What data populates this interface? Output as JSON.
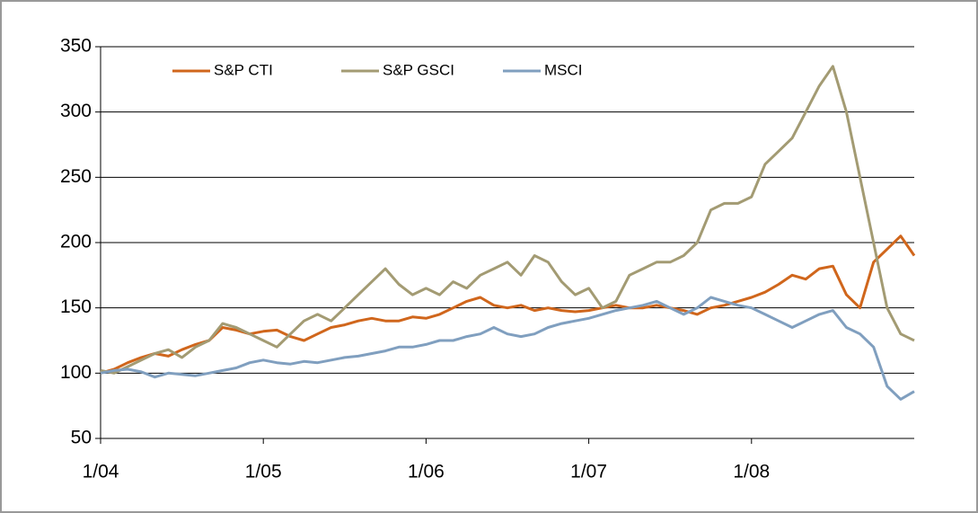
{
  "chart_data": {
    "type": "line",
    "categories": [
      "1/04",
      null,
      null,
      null,
      null,
      null,
      null,
      null,
      null,
      null,
      null,
      null,
      "1/05",
      null,
      null,
      null,
      null,
      null,
      null,
      null,
      null,
      null,
      null,
      null,
      "1/06",
      null,
      null,
      null,
      null,
      null,
      null,
      null,
      null,
      null,
      null,
      null,
      "1/07",
      null,
      null,
      null,
      null,
      null,
      null,
      null,
      null,
      null,
      null,
      null,
      "1/08",
      null,
      null,
      null,
      null,
      null,
      null,
      null,
      null,
      null,
      null,
      null,
      null
    ],
    "series": [
      {
        "name": "S&P CTI",
        "color": "#d0661c",
        "values": [
          100,
          103,
          108,
          112,
          115,
          113,
          118,
          122,
          125,
          135,
          133,
          130,
          132,
          133,
          128,
          125,
          130,
          135,
          137,
          140,
          142,
          140,
          140,
          143,
          142,
          145,
          150,
          155,
          158,
          152,
          150,
          152,
          148,
          150,
          148,
          147,
          148,
          150,
          152,
          150,
          150,
          152,
          150,
          148,
          145,
          150,
          152,
          155,
          158,
          162,
          168,
          175,
          172,
          180,
          182,
          160,
          150,
          185,
          195,
          205,
          190
        ]
      },
      {
        "name": "S&P GSCI",
        "color": "#a39b73",
        "values": [
          102,
          100,
          105,
          110,
          115,
          118,
          112,
          120,
          125,
          138,
          135,
          130,
          125,
          120,
          130,
          140,
          145,
          140,
          150,
          160,
          170,
          180,
          168,
          160,
          165,
          160,
          170,
          165,
          175,
          180,
          185,
          175,
          190,
          185,
          170,
          160,
          165,
          150,
          155,
          175,
          180,
          185,
          185,
          190,
          200,
          225,
          230,
          230,
          235,
          260,
          270,
          280,
          300,
          320,
          335,
          300,
          250,
          200,
          150,
          130,
          125
        ]
      },
      {
        "name": "MSCI",
        "color": "#809fbf",
        "values": [
          100,
          102,
          103,
          101,
          97,
          100,
          99,
          98,
          100,
          102,
          104,
          108,
          110,
          108,
          107,
          109,
          108,
          110,
          112,
          113,
          115,
          117,
          120,
          120,
          122,
          125,
          125,
          128,
          130,
          135,
          130,
          128,
          130,
          135,
          138,
          140,
          142,
          145,
          148,
          150,
          152,
          155,
          150,
          145,
          150,
          158,
          155,
          152,
          150,
          145,
          140,
          135,
          140,
          145,
          148,
          135,
          130,
          120,
          90,
          80,
          86
        ]
      }
    ],
    "ylim": [
      50,
      350
    ],
    "yticks": [
      50,
      100,
      150,
      200,
      250,
      300,
      350
    ],
    "grid": true,
    "legend": "top"
  }
}
